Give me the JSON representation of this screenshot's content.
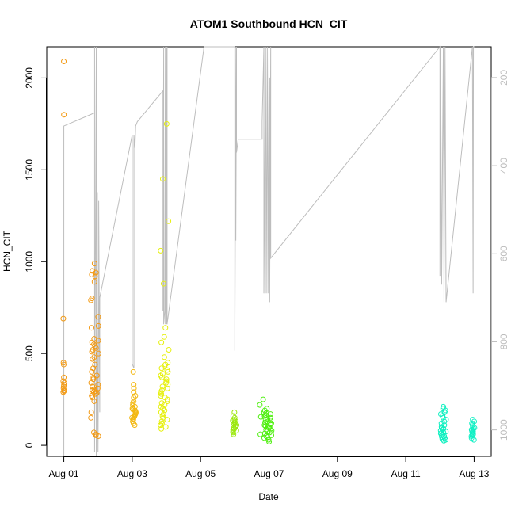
{
  "chart_data": {
    "type": "scatter",
    "title": "ATOM1 Southbound HCN_CIT",
    "xlabel": "Date",
    "ylabel": "HCN_CIT",
    "x_ticks": [
      {
        "value": 0,
        "label": "Aug 01"
      },
      {
        "value": 2,
        "label": "Aug 03"
      },
      {
        "value": 4,
        "label": "Aug 05"
      },
      {
        "value": 6,
        "label": "Aug 07"
      },
      {
        "value": 8,
        "label": "Aug 09"
      },
      {
        "value": 10,
        "label": "Aug 11"
      },
      {
        "value": 12,
        "label": "Aug 13"
      }
    ],
    "xlim": [
      -0.5,
      12.5
    ],
    "ylim": [
      -60,
      2170
    ],
    "y_ticks": [
      {
        "value": 0,
        "label": "0"
      },
      {
        "value": 500,
        "label": "500"
      },
      {
        "value": 1000,
        "label": "1000"
      },
      {
        "value": 1500,
        "label": "1500"
      },
      {
        "value": 2000,
        "label": "2000"
      }
    ],
    "y2lim": [
      1060,
      130
    ],
    "y2_ticks": [
      {
        "value": 200,
        "label": "200"
      },
      {
        "value": 400,
        "label": "400"
      },
      {
        "value": 600,
        "label": "600"
      },
      {
        "value": 800,
        "label": "800"
      },
      {
        "value": 1000,
        "label": "1000"
      }
    ],
    "grid": false,
    "legend": "none",
    "colors": {
      "scatter_by_day": [
        "#f39a14",
        "#f39a14",
        "#f3b812",
        "#e6f00f",
        "#e6f00f",
        "#9ce80e",
        "#4fef10",
        "#4fef10",
        "#2ef060",
        "#1ef0a0",
        "#11eeb6",
        "#0ff0c0",
        "#10f0c4"
      ],
      "secondary_line": "#bdbdbd"
    },
    "scatter_clusters": [
      {
        "day": 0,
        "x_center": 0.0,
        "x_spread": 0.02,
        "y_values": [
          2090,
          1800,
          690,
          450,
          440,
          370,
          350,
          340,
          330,
          320,
          310,
          300,
          295,
          290
        ]
      },
      {
        "day": 1,
        "x_center": 0.9,
        "x_spread": 0.12,
        "y_values": [
          990,
          950,
          940,
          930,
          920,
          890,
          800,
          790,
          700,
          650,
          640,
          580,
          570,
          560,
          550,
          540,
          530,
          520,
          510,
          500,
          480,
          470,
          440,
          420,
          400,
          380,
          370,
          360,
          340,
          330,
          320,
          310,
          305,
          300,
          295,
          290,
          285,
          280,
          270,
          260,
          240,
          180,
          150,
          70,
          60,
          55,
          50
        ]
      },
      {
        "day": 2,
        "x_center": 2.05,
        "x_spread": 0.06,
        "y_values": [
          400,
          330,
          310,
          290,
          270,
          260,
          240,
          230,
          220,
          210,
          200,
          195,
          190,
          185,
          180,
          175,
          170,
          165,
          160,
          155,
          150,
          145,
          140,
          130,
          120,
          110
        ]
      },
      {
        "day": 3,
        "x_center": 2.95,
        "x_spread": 0.12,
        "y_values": [
          1750,
          1450,
          1220,
          1060,
          880,
          640,
          590,
          560,
          520,
          480,
          450,
          440,
          430,
          420,
          410,
          400,
          390,
          380,
          370,
          360,
          350,
          340,
          330,
          320,
          310,
          300,
          290,
          280,
          270,
          260,
          250,
          240,
          230,
          220,
          210,
          200,
          190,
          180,
          170,
          160,
          150,
          140,
          130,
          120,
          110,
          100,
          90
        ]
      },
      {
        "day": 5,
        "x_center": 5.0,
        "x_spread": 0.06,
        "y_values": [
          180,
          160,
          150,
          140,
          135,
          130,
          125,
          120,
          115,
          110,
          105,
          100,
          95,
          90,
          85,
          80,
          75,
          70,
          60
        ]
      },
      {
        "day": 6,
        "x_center": 5.9,
        "x_spread": 0.18,
        "y_values": [
          250,
          220,
          200,
          190,
          180,
          175,
          170,
          165,
          160,
          155,
          150,
          145,
          140,
          135,
          130,
          125,
          120,
          115,
          110,
          105,
          100,
          95,
          90,
          85,
          80,
          75,
          70,
          65,
          60,
          55,
          50,
          45,
          40,
          30,
          20
        ]
      },
      {
        "day": 11,
        "x_center": 11.1,
        "x_spread": 0.08,
        "y_values": [
          210,
          200,
          190,
          180,
          170,
          160,
          150,
          140,
          130,
          120,
          110,
          100,
          95,
          90,
          85,
          80,
          75,
          70,
          65,
          60,
          55,
          50,
          45,
          40,
          35,
          30,
          25
        ]
      },
      {
        "day": 12,
        "x_center": 11.97,
        "x_spread": 0.05,
        "y_values": [
          140,
          130,
          120,
          110,
          100,
          95,
          90,
          85,
          80,
          75,
          70,
          65,
          60,
          55,
          50,
          40,
          30
        ]
      }
    ],
    "secondary_series": {
      "points": [
        [
          0.0,
          920
        ],
        [
          0.0,
          360
        ],
        [
          0.0,
          670
        ],
        [
          0.0,
          1060
        ],
        [
          0.0,
          820
        ],
        [
          0.0,
          310
        ],
        [
          0.9,
          280
        ],
        [
          0.9,
          130
        ],
        [
          0.9,
          1050
        ],
        [
          0.95,
          130
        ],
        [
          0.95,
          1060
        ],
        [
          0.97,
          610
        ],
        [
          0.98,
          460
        ],
        [
          0.98,
          740
        ],
        [
          1.0,
          1050
        ],
        [
          1.02,
          700
        ],
        [
          1.02,
          480
        ],
        [
          1.05,
          960
        ],
        [
          1.05,
          700
        ],
        [
          2.0,
          330
        ],
        [
          2.0,
          830
        ],
        [
          2.0,
          850
        ],
        [
          2.05,
          860
        ],
        [
          2.05,
          330
        ],
        [
          2.08,
          360
        ],
        [
          2.1,
          120
        ],
        [
          2.1,
          310
        ],
        [
          2.15,
          300
        ],
        [
          2.9,
          230
        ],
        [
          2.9,
          730
        ],
        [
          2.92,
          130
        ],
        [
          2.92,
          760
        ],
        [
          2.95,
          730
        ],
        [
          2.97,
          130
        ],
        [
          2.97,
          760
        ],
        [
          3.0,
          130
        ],
        [
          3.0,
          760
        ],
        [
          3.02,
          130
        ],
        [
          3.02,
          760
        ],
        [
          4.1,
          130
        ],
        [
          4.5,
          130
        ],
        [
          5.0,
          130
        ],
        [
          5.0,
          370
        ],
        [
          5.0,
          820
        ],
        [
          5.02,
          420
        ],
        [
          5.02,
          130
        ],
        [
          5.03,
          570
        ],
        [
          5.05,
          130
        ],
        [
          5.05,
          370
        ],
        [
          5.1,
          340
        ],
        [
          5.8,
          340
        ],
        [
          5.8,
          300
        ],
        [
          5.85,
          130
        ],
        [
          5.85,
          690
        ],
        [
          5.9,
          130
        ],
        [
          5.92,
          690
        ],
        [
          5.95,
          130
        ],
        [
          5.97,
          690
        ],
        [
          6.0,
          130
        ],
        [
          6.0,
          730
        ],
        [
          6.02,
          200
        ],
        [
          6.02,
          710
        ],
        [
          6.05,
          130
        ],
        [
          6.05,
          610
        ],
        [
          11.0,
          130
        ],
        [
          11.0,
          650
        ],
        [
          11.02,
          130
        ],
        [
          11.05,
          670
        ],
        [
          11.1,
          130
        ],
        [
          11.12,
          710
        ],
        [
          11.15,
          130
        ],
        [
          11.18,
          710
        ],
        [
          11.95,
          130
        ],
        [
          11.97,
          690
        ],
        [
          11.98,
          130
        ],
        [
          12.0,
          130
        ]
      ]
    }
  }
}
